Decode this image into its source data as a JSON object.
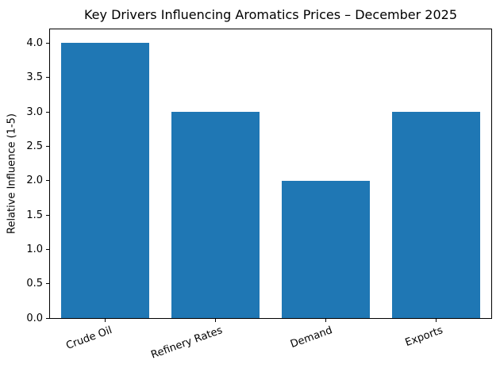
{
  "chart_data": {
    "type": "bar",
    "title": "Key Drivers Influencing Aromatics Prices – December 2025",
    "categories": [
      "Crude Oil",
      "Refinery Rates",
      "Demand",
      "Exports"
    ],
    "values": [
      4,
      3,
      2,
      3
    ],
    "xlabel": "",
    "ylabel": "Relative Influence (1-5)",
    "ylim": [
      0,
      4.2
    ],
    "yticks": [
      0.0,
      0.5,
      1.0,
      1.5,
      2.0,
      2.5,
      3.0,
      3.5,
      4.0
    ],
    "bar_color": "#1f77b4",
    "bar_width_fraction": 0.8,
    "grid": false,
    "legend": null,
    "background_color": "#ffffff",
    "text_color": "#000000"
  }
}
